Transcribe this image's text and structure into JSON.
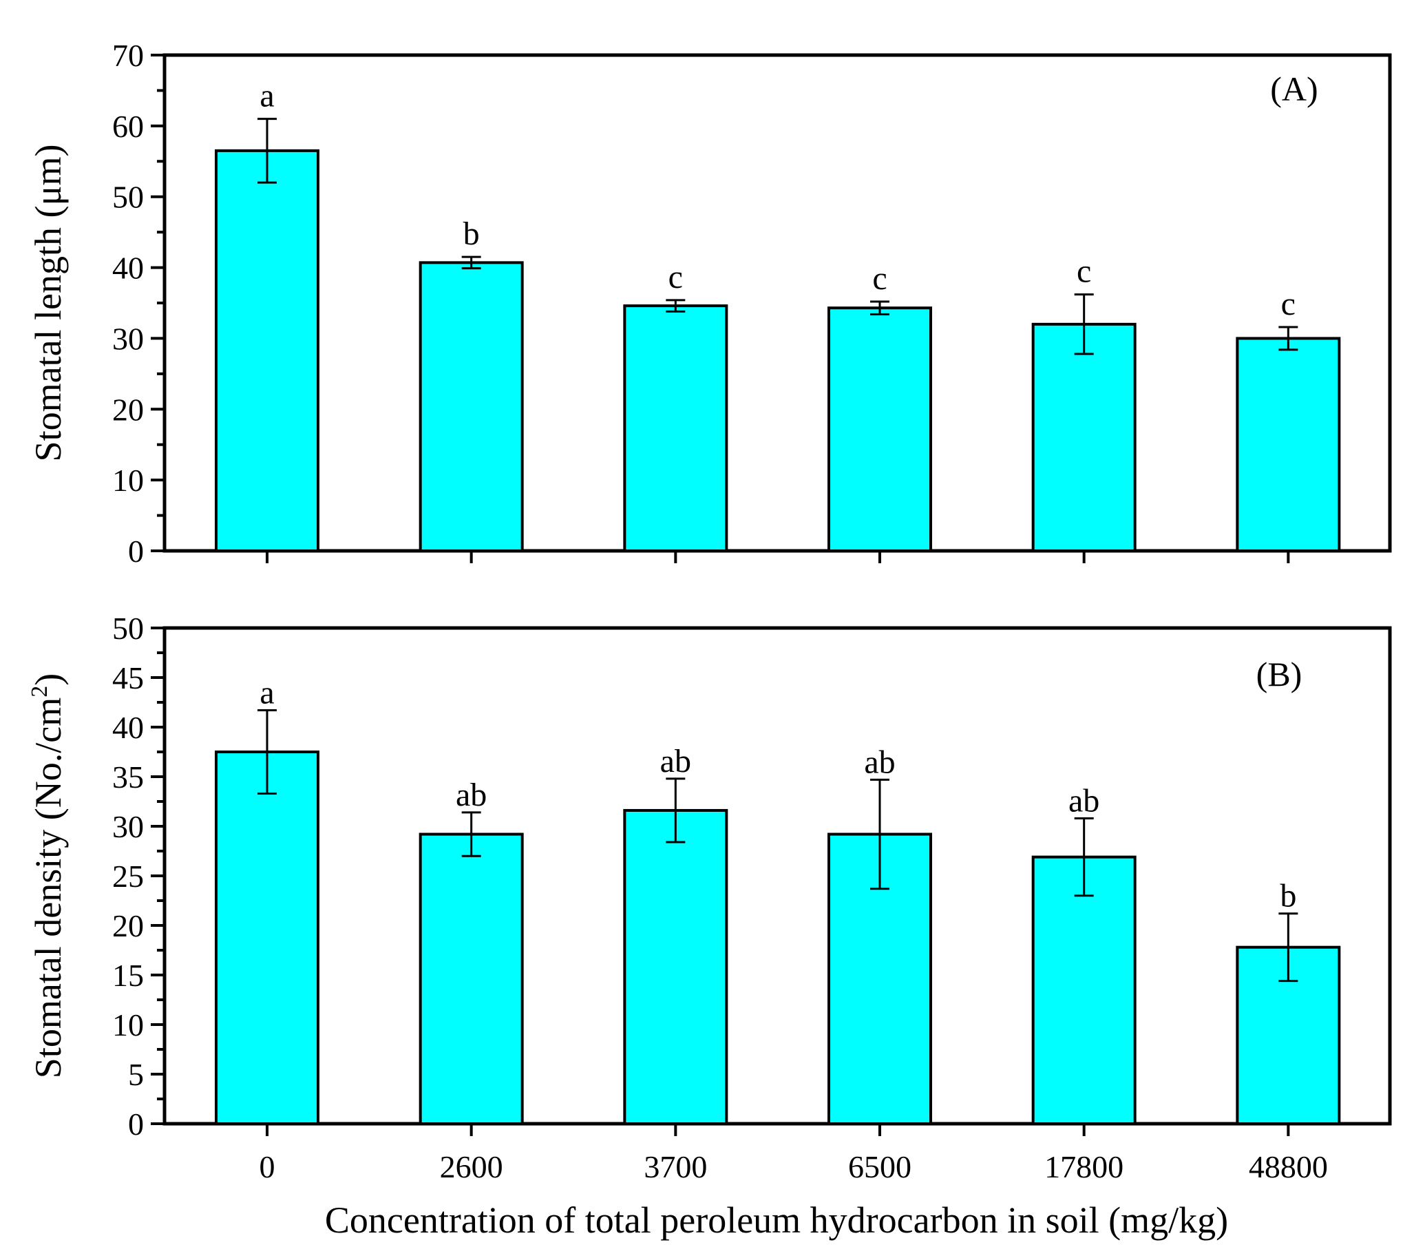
{
  "chart_data": [
    {
      "type": "bar",
      "panel_label": "(A)",
      "categories": [
        "0",
        "2600",
        "3700",
        "6500",
        "17800",
        "48800"
      ],
      "values": [
        56.5,
        40.7,
        34.6,
        34.3,
        32.0,
        30.0
      ],
      "errors": [
        4.5,
        0.8,
        0.8,
        0.9,
        4.2,
        1.6
      ],
      "significance": [
        "a",
        "b",
        "c",
        "c",
        "c",
        "c"
      ],
      "ylabel": "Stomatal length (μm)",
      "xlabel": "",
      "ylim": [
        0,
        70
      ],
      "yticks": [
        0,
        10,
        20,
        30,
        40,
        50,
        60,
        70
      ],
      "ytick_labels": [
        "0",
        "10",
        "20",
        "30",
        "40",
        "50",
        "60",
        "70"
      ],
      "bar_color": "#00ffff"
    },
    {
      "type": "bar",
      "panel_label": "(B)",
      "categories": [
        "0",
        "2600",
        "3700",
        "6500",
        "17800",
        "48800"
      ],
      "values": [
        37.5,
        29.2,
        31.6,
        29.2,
        26.9,
        17.8
      ],
      "errors": [
        4.2,
        2.2,
        3.2,
        5.5,
        3.9,
        3.4
      ],
      "significance": [
        "a",
        "ab",
        "ab",
        "ab",
        "ab",
        "b"
      ],
      "ylabel_main": "Stomatal density (No./cm",
      "ylabel_sup": "2",
      "ylabel_close": ")",
      "xlabel": "Concentration of total peroleum hydrocarbon in soil (mg/kg)",
      "ylim": [
        0,
        50
      ],
      "yticks": [
        0,
        5,
        10,
        15,
        20,
        25,
        30,
        35,
        40,
        45,
        50
      ],
      "ytick_labels": [
        "0",
        "5",
        "10",
        "15",
        "20",
        "25",
        "30",
        "35",
        "40",
        "45",
        "50"
      ],
      "bar_color": "#00ffff"
    }
  ]
}
